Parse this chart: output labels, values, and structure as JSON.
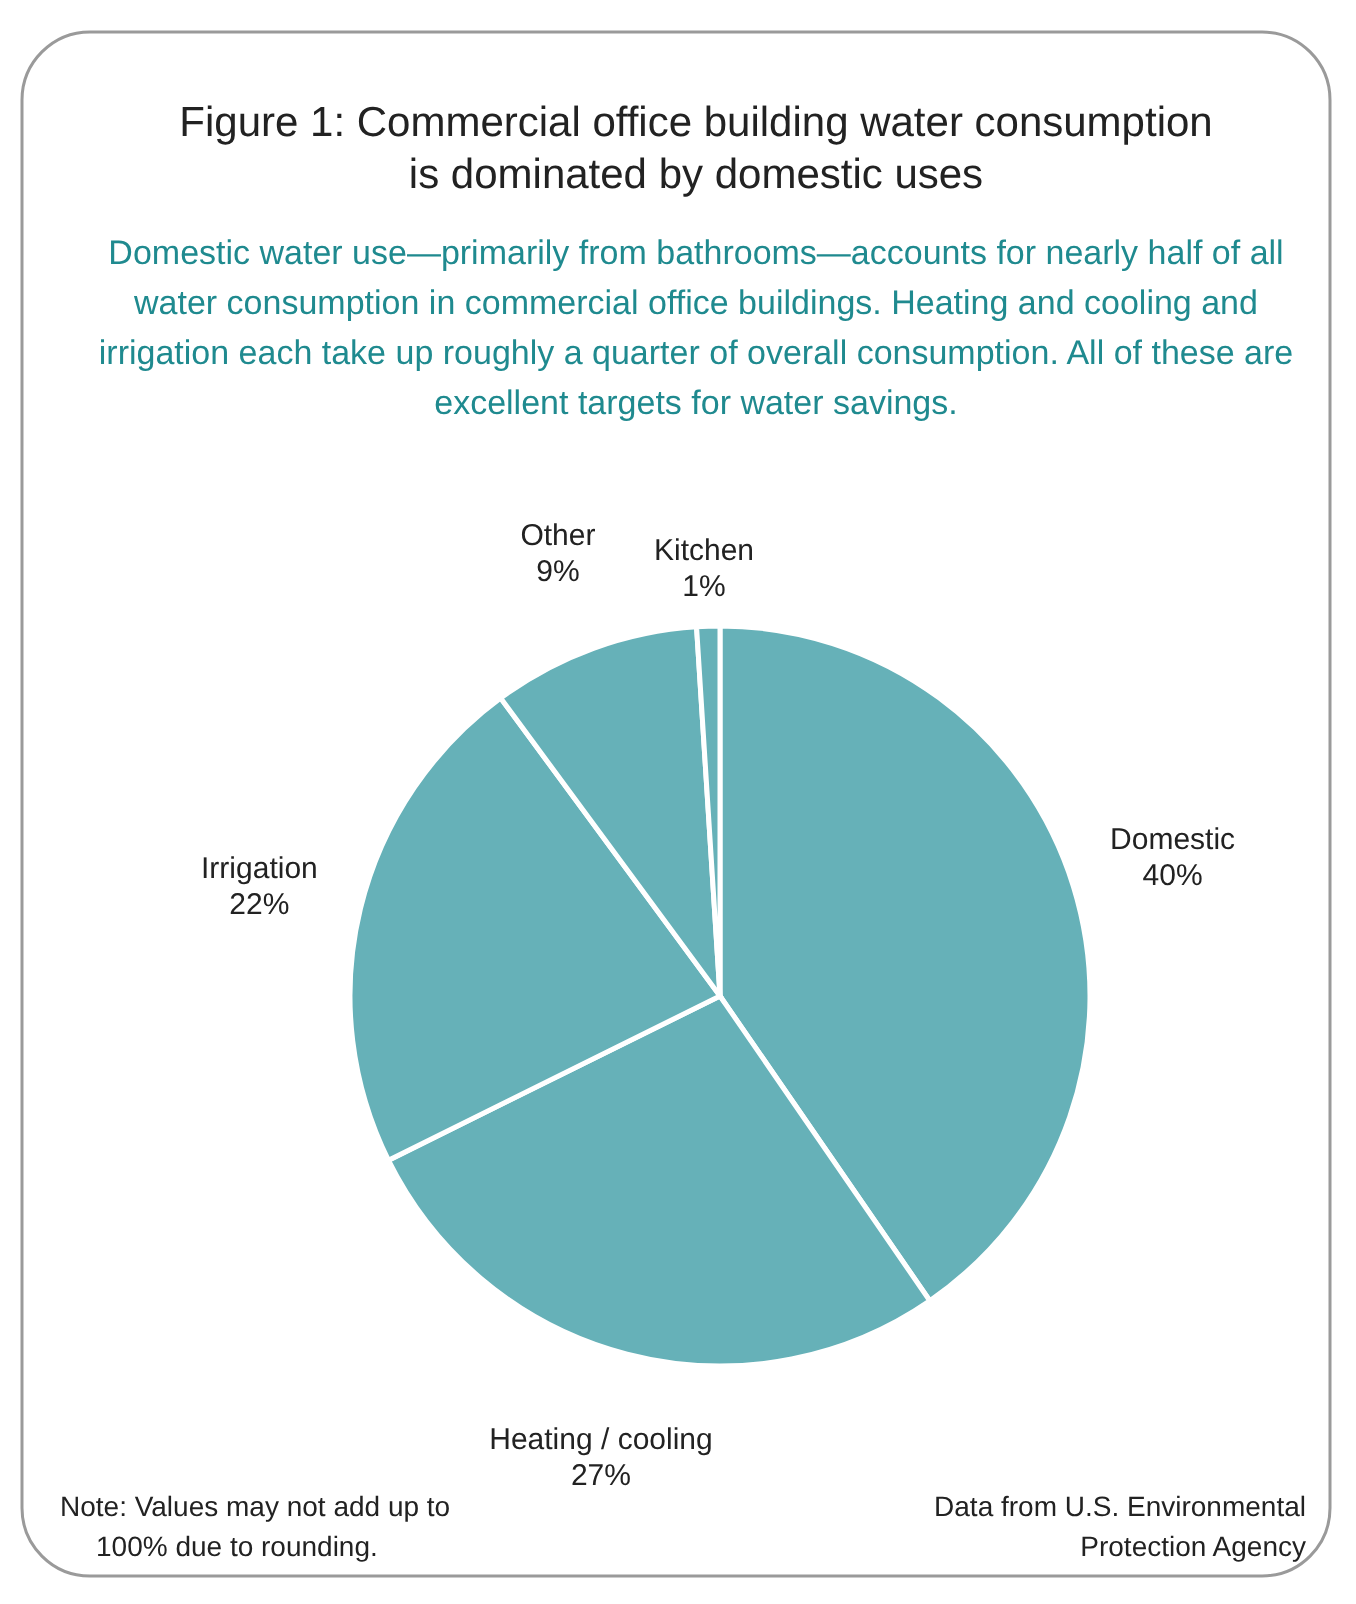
{
  "chart_data": {
    "type": "pie",
    "title": "Figure 1: Commercial office building water consumption is dominated by domestic uses",
    "subtitle": "Domestic water use—primarily from bathrooms—accounts for nearly half of all water consumption in commercial office buildings. Heating and cooling and irrigation each take up roughly a quarter of overall consumption. All of these are excellent targets for water savings.",
    "categories": [
      "Domestic",
      "Heating / cooling",
      "Irrigation",
      "Other",
      "Kitchen"
    ],
    "values": [
      40,
      27,
      22,
      9,
      1
    ],
    "value_labels": [
      "40%",
      "27%",
      "22%",
      "9%",
      "1%"
    ],
    "colors": [
      "#66b1b8",
      "#66b1b8",
      "#66b1b8",
      "#66b1b8",
      "#66b1b8"
    ],
    "annotations": [
      "Note: Values may not add up to 100% due to rounding.",
      "Data from U.S. Environmental Protection Agency"
    ]
  }
}
